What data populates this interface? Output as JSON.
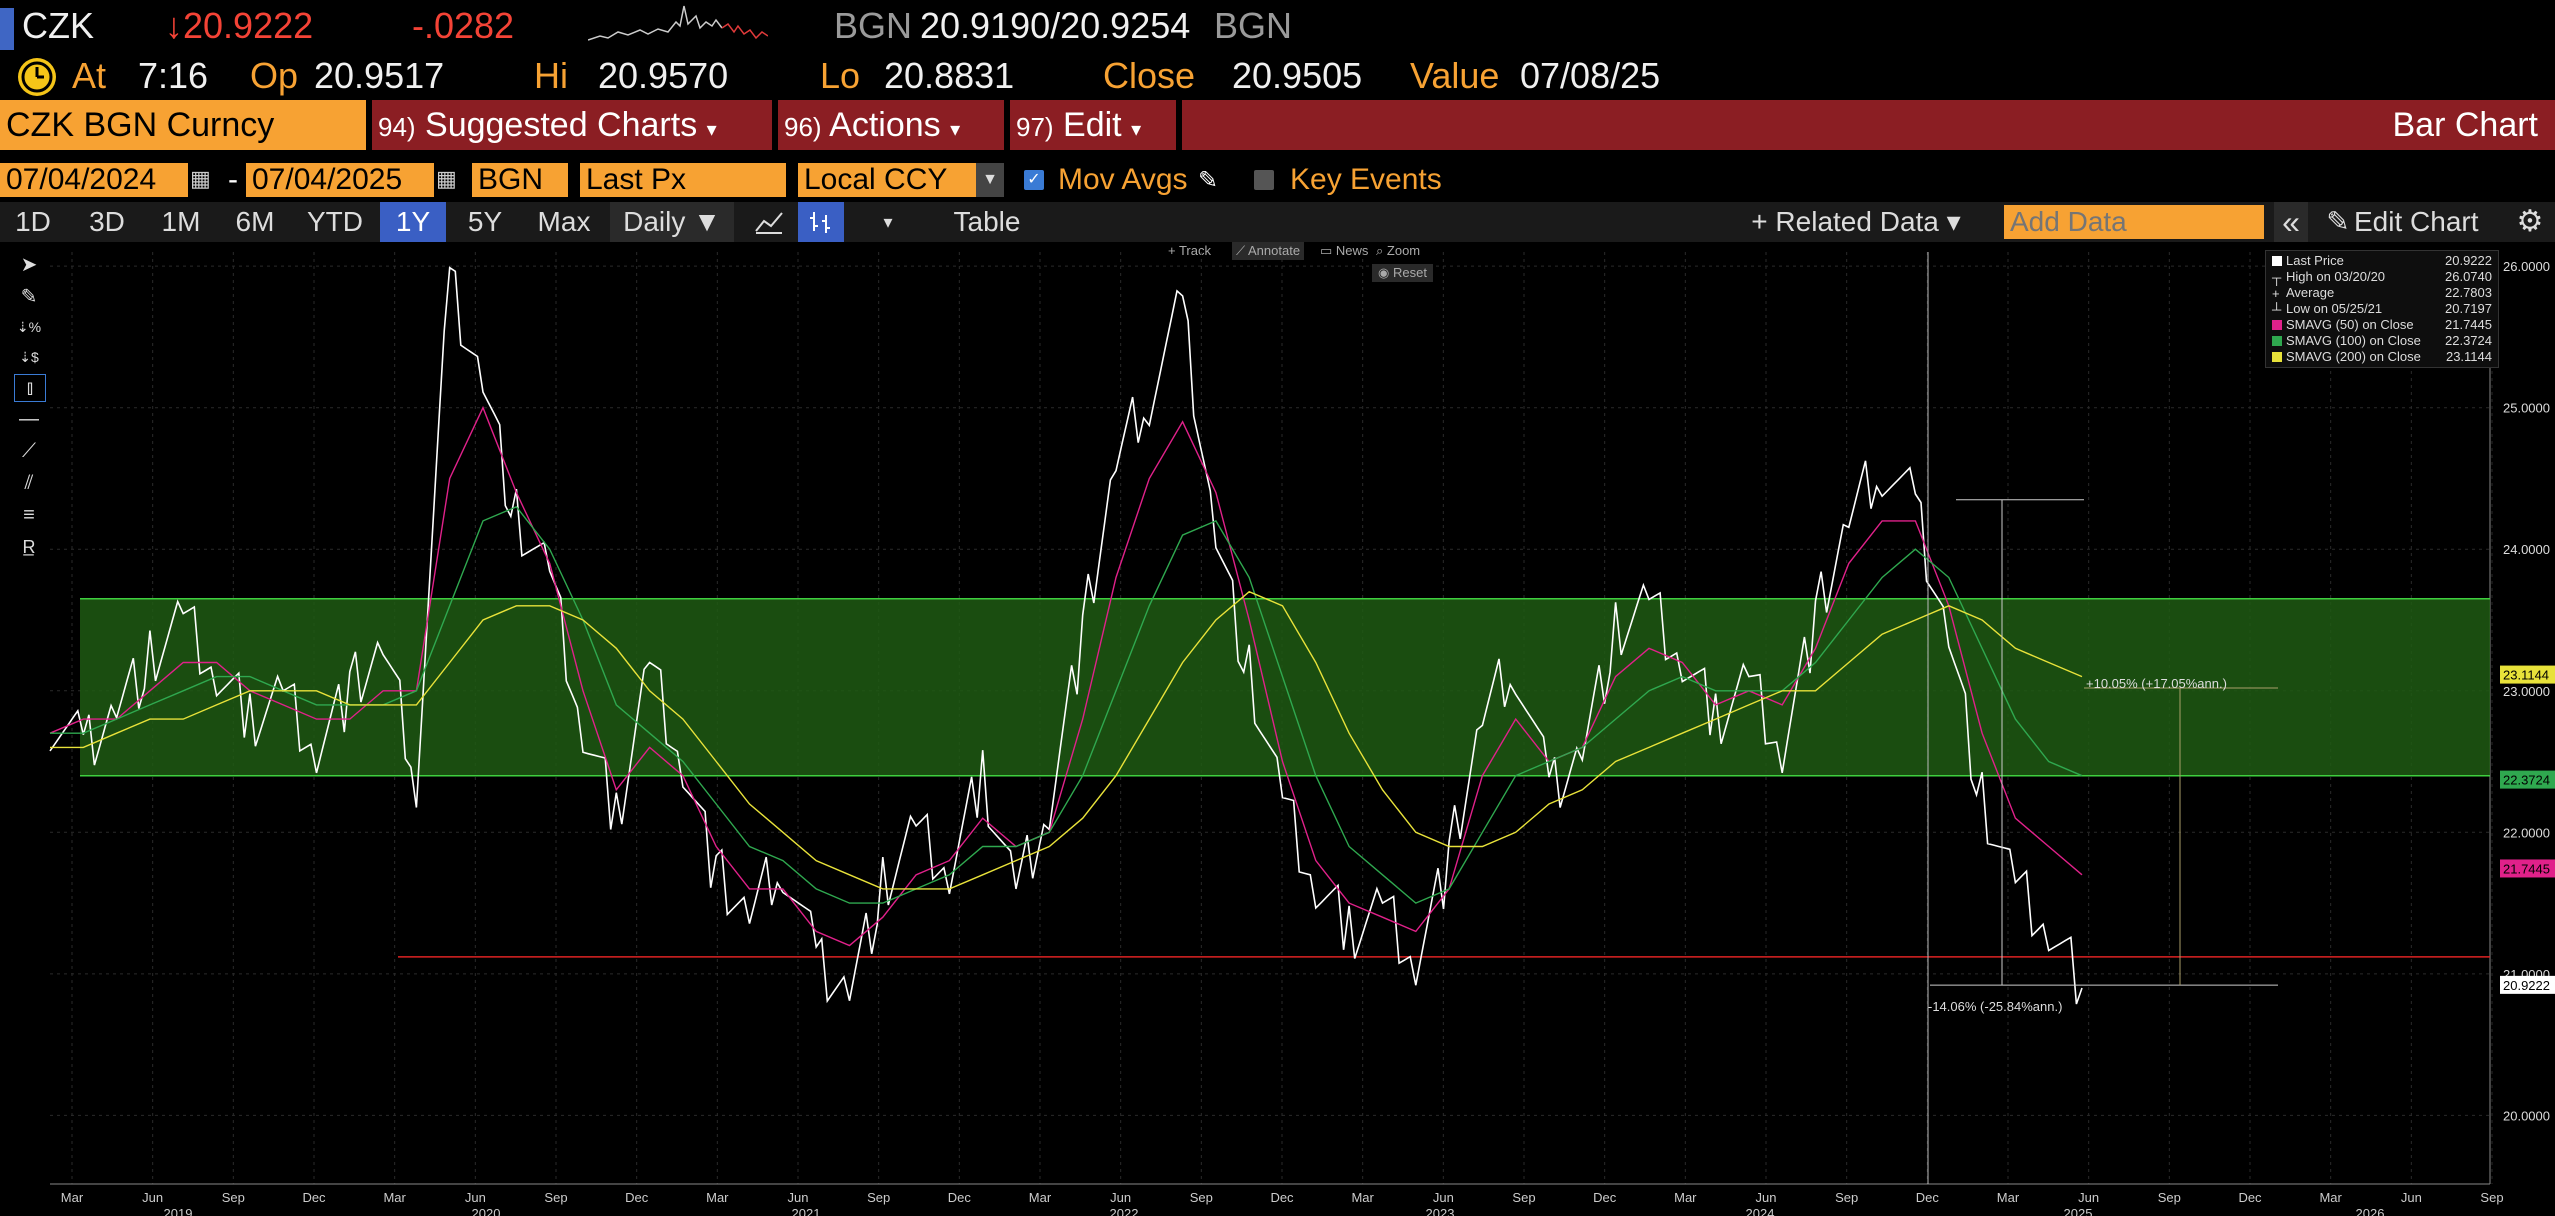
{
  "quote": {
    "ticker": "CZK",
    "last": "↓20.9222",
    "change": "-.0282",
    "bid_ccy": "BGN",
    "bid_ask": "20.9190/20.9254",
    "ask_ccy": "BGN",
    "at_label": "At",
    "time": "7:16",
    "op_label": "Op",
    "op": "20.9517",
    "hi_label": "Hi",
    "hi": "20.9570",
    "lo_label": "Lo",
    "lo": "20.8831",
    "close_label": "Close",
    "close": "20.9505",
    "value_label": "Value",
    "value": "07/08/25"
  },
  "command": {
    "security": "CZK BGN Curncy",
    "suggested_num": "94)",
    "suggested": "Suggested Charts",
    "actions_num": "96)",
    "actions": "Actions",
    "edit_num": "97)",
    "edit": "Edit",
    "chart_type": "Bar Chart"
  },
  "params": {
    "start_date": "07/04/2024",
    "dash": "-",
    "end_date": "07/04/2025",
    "currency": "BGN",
    "field": "Last Px",
    "ccy_mode": "Local CCY",
    "mov_avgs": "Mov Avgs",
    "key_events": "Key Events"
  },
  "ranges": {
    "items": [
      "1D",
      "3D",
      "1M",
      "6M",
      "YTD",
      "1Y",
      "5Y",
      "Max"
    ],
    "active": "1Y",
    "period": "Daily ▼",
    "table": "Table",
    "related": "+ Related Data ▾",
    "add_data_placeholder": "Add Data",
    "collapse": "«",
    "edit_chart": "Edit Chart"
  },
  "mini_tools": {
    "track": "Track",
    "annotate": "Annotate",
    "news": "News",
    "zoom": "Zoom",
    "reset": "Reset"
  },
  "legend": {
    "rows": [
      {
        "label": "Last Price",
        "value": "20.9222"
      },
      {
        "label": "High on 03/20/20",
        "value": "26.0740"
      },
      {
        "label": "Average",
        "value": "22.7803"
      },
      {
        "label": "Low on 05/25/21",
        "value": "20.7197"
      },
      {
        "label": "SMAVG (50)  on Close",
        "value": "21.7445"
      },
      {
        "label": "SMAVG (100)  on Close",
        "value": "22.3724"
      },
      {
        "label": "SMAVG (200)  on Close",
        "value": "23.1144"
      }
    ]
  },
  "annotations": {
    "up": "+10.05% (+17.05%ann.)",
    "down": "-14.06% (-25.84%ann.)"
  },
  "colors": {
    "sma50": "#e0218a",
    "sma100": "#2fa84f",
    "sma200": "#e8e23a",
    "band": "#1f5a13",
    "price": "#ffffff",
    "accent": "#f7a233",
    "cmdbar": "#8b1e23"
  },
  "chart_data": {
    "type": "line",
    "title": "",
    "y_ticks": [
      "26.0000",
      "25.0000",
      "24.0000",
      "23.0000",
      "22.0000",
      "21.0000",
      "20.0000"
    ],
    "ylim": [
      19.6,
      26.1
    ],
    "x_ticks": [
      "Mar",
      "Jun",
      "Sep",
      "Dec",
      "Mar",
      "Jun",
      "Sep",
      "Dec",
      "Mar",
      "Jun",
      "Sep",
      "Dec",
      "Mar",
      "Jun",
      "Sep",
      "Dec",
      "Mar",
      "Jun",
      "Sep",
      "Dec",
      "Mar",
      "Jun",
      "Sep",
      "Dec",
      "Mar",
      "Jun",
      "Sep",
      "Dec",
      "Mar",
      "Jun",
      "Sep"
    ],
    "years": [
      "2019",
      "2020",
      "2021",
      "2022",
      "2023",
      "2024",
      "2025",
      "2026"
    ],
    "y_tags": [
      {
        "value": "23.1144",
        "color": "#e8e23a"
      },
      {
        "value": "22.3724",
        "color": "#2fa84f"
      },
      {
        "value": "21.7445",
        "color": "#e0218a"
      },
      {
        "value": "20.9222",
        "color": "#ffffff"
      }
    ],
    "band": [
      22.4,
      23.65
    ],
    "support_line": 21.12,
    "series": [
      {
        "values": [
          22.8,
          22.6,
          22.9,
          23.2,
          23.5,
          23.1,
          22.8,
          23.0,
          22.6,
          23.0,
          23.3,
          22.4,
          25.9,
          25.2,
          24.2,
          23.8,
          22.7,
          22.1,
          23.2,
          22.5,
          21.7,
          21.4,
          21.8,
          21.1,
          20.9,
          21.6,
          22.0,
          21.7,
          22.4,
          21.6,
          22.2,
          23.4,
          24.6,
          25.1,
          25.7,
          24.1,
          23.1,
          22.2,
          21.6,
          21.3,
          21.5,
          21.1,
          21.8,
          22.8,
          23.2,
          22.3,
          22.6,
          23.4,
          23.6,
          23.2,
          22.8,
          23.1,
          22.6,
          23.5,
          24.2,
          24.6,
          24.3,
          23.4,
          22.2,
          21.6,
          21.3,
          20.9
        ]
      },
      {
        "name": "SMAVG (50)",
        "values": [
          22.7,
          22.8,
          22.8,
          23.0,
          23.2,
          23.2,
          23.0,
          22.9,
          22.8,
          22.8,
          23.0,
          23.0,
          24.5,
          25.0,
          24.4,
          23.9,
          23.0,
          22.3,
          22.6,
          22.4,
          21.9,
          21.6,
          21.6,
          21.3,
          21.2,
          21.4,
          21.7,
          21.8,
          22.1,
          21.9,
          22.0,
          22.8,
          23.8,
          24.5,
          24.9,
          24.4,
          23.5,
          22.5,
          21.8,
          21.5,
          21.4,
          21.3,
          21.6,
          22.4,
          22.8,
          22.5,
          22.6,
          23.1,
          23.3,
          23.2,
          22.9,
          23.0,
          22.9,
          23.3,
          23.9,
          24.2,
          24.2,
          23.6,
          22.7,
          22.1,
          21.9,
          21.7
        ]
      },
      {
        "name": "SMAVG (100)",
        "values": [
          22.7,
          22.7,
          22.8,
          22.9,
          23.0,
          23.1,
          23.1,
          23.0,
          22.9,
          22.9,
          22.9,
          23.0,
          23.6,
          24.2,
          24.3,
          24.0,
          23.5,
          22.9,
          22.7,
          22.5,
          22.2,
          21.9,
          21.8,
          21.6,
          21.5,
          21.5,
          21.6,
          21.7,
          21.9,
          21.9,
          22.0,
          22.4,
          23.0,
          23.6,
          24.1,
          24.2,
          23.8,
          23.1,
          22.4,
          21.9,
          21.7,
          21.5,
          21.6,
          22.0,
          22.4,
          22.5,
          22.6,
          22.8,
          23.0,
          23.1,
          23.0,
          23.0,
          23.0,
          23.2,
          23.5,
          23.8,
          24.0,
          23.8,
          23.3,
          22.8,
          22.5,
          22.4
        ]
      },
      {
        "name": "SMAVG (200)",
        "values": [
          22.6,
          22.6,
          22.7,
          22.8,
          22.8,
          22.9,
          23.0,
          23.0,
          23.0,
          22.9,
          22.9,
          22.9,
          23.2,
          23.5,
          23.6,
          23.6,
          23.5,
          23.3,
          23.0,
          22.8,
          22.5,
          22.2,
          22.0,
          21.8,
          21.7,
          21.6,
          21.6,
          21.6,
          21.7,
          21.8,
          21.9,
          22.1,
          22.4,
          22.8,
          23.2,
          23.5,
          23.7,
          23.6,
          23.2,
          22.7,
          22.3,
          22.0,
          21.9,
          21.9,
          22.0,
          22.2,
          22.3,
          22.5,
          22.6,
          22.7,
          22.8,
          22.9,
          23.0,
          23.0,
          23.2,
          23.4,
          23.5,
          23.6,
          23.5,
          23.3,
          23.2,
          23.1
        ]
      }
    ]
  }
}
